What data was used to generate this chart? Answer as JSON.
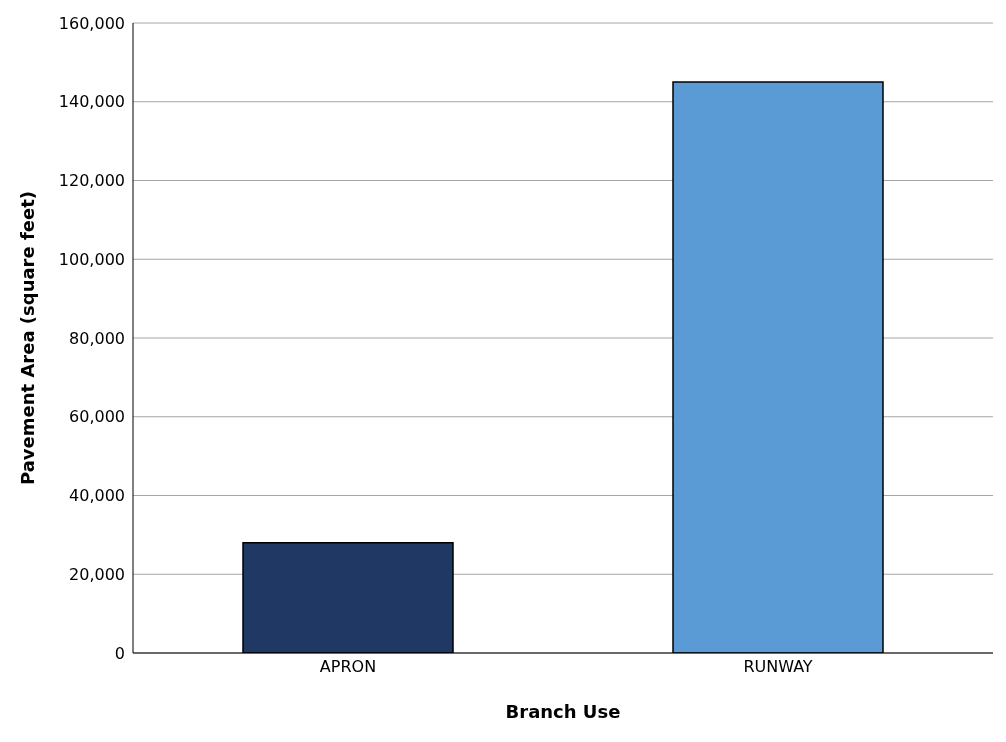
{
  "chart_data": {
    "type": "bar",
    "xlabel": "Branch Use",
    "ylabel": "Pavement Area (square feet)",
    "categories": [
      "APRON",
      "RUNWAY"
    ],
    "values": [
      28000,
      145000
    ],
    "colors": [
      "#203864",
      "#5b9bd5"
    ],
    "ylim": [
      0,
      160000
    ],
    "yticks": [
      {
        "value": 0,
        "label": "0"
      },
      {
        "value": 20000,
        "label": "20,000"
      },
      {
        "value": 40000,
        "label": "40,000"
      },
      {
        "value": 60000,
        "label": "60,000"
      },
      {
        "value": 80000,
        "label": "80,000"
      },
      {
        "value": 100000,
        "label": "100,000"
      },
      {
        "value": 120000,
        "label": "120,000"
      },
      {
        "value": 140000,
        "label": "140,000"
      },
      {
        "value": 160000,
        "label": "160,000"
      }
    ],
    "grid": "y"
  }
}
